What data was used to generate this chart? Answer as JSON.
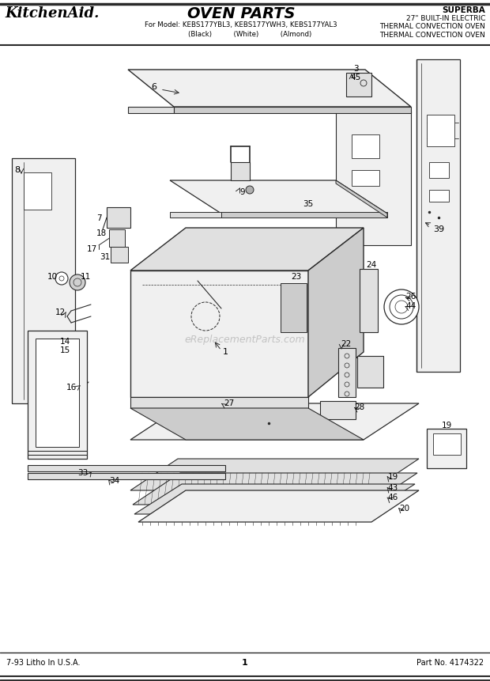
{
  "title": "OVEN PARTS",
  "brand": "KitchenAid.",
  "model_line1": "For Model: KEBS177YBL3, KEBS177YWH3, KEBS177YAL3",
  "model_line2": "        (Black)          (White)          (Almond)",
  "right_title1": "SUPERBA",
  "right_title2": "27\" BUILT-IN ELECTRIC",
  "right_title3": "THERMAL CONVECTION OVEN",
  "footer_left": "7-93 Litho In U.S.A.",
  "footer_center": "1",
  "footer_right": "Part No. 4174322",
  "bg_color": "#ffffff",
  "line_color": "#2a2a2a",
  "fill_light": "#f0f0f0",
  "fill_mid": "#e0e0e0",
  "fill_dark": "#cccccc",
  "watermark": "eReplacementParts.com"
}
